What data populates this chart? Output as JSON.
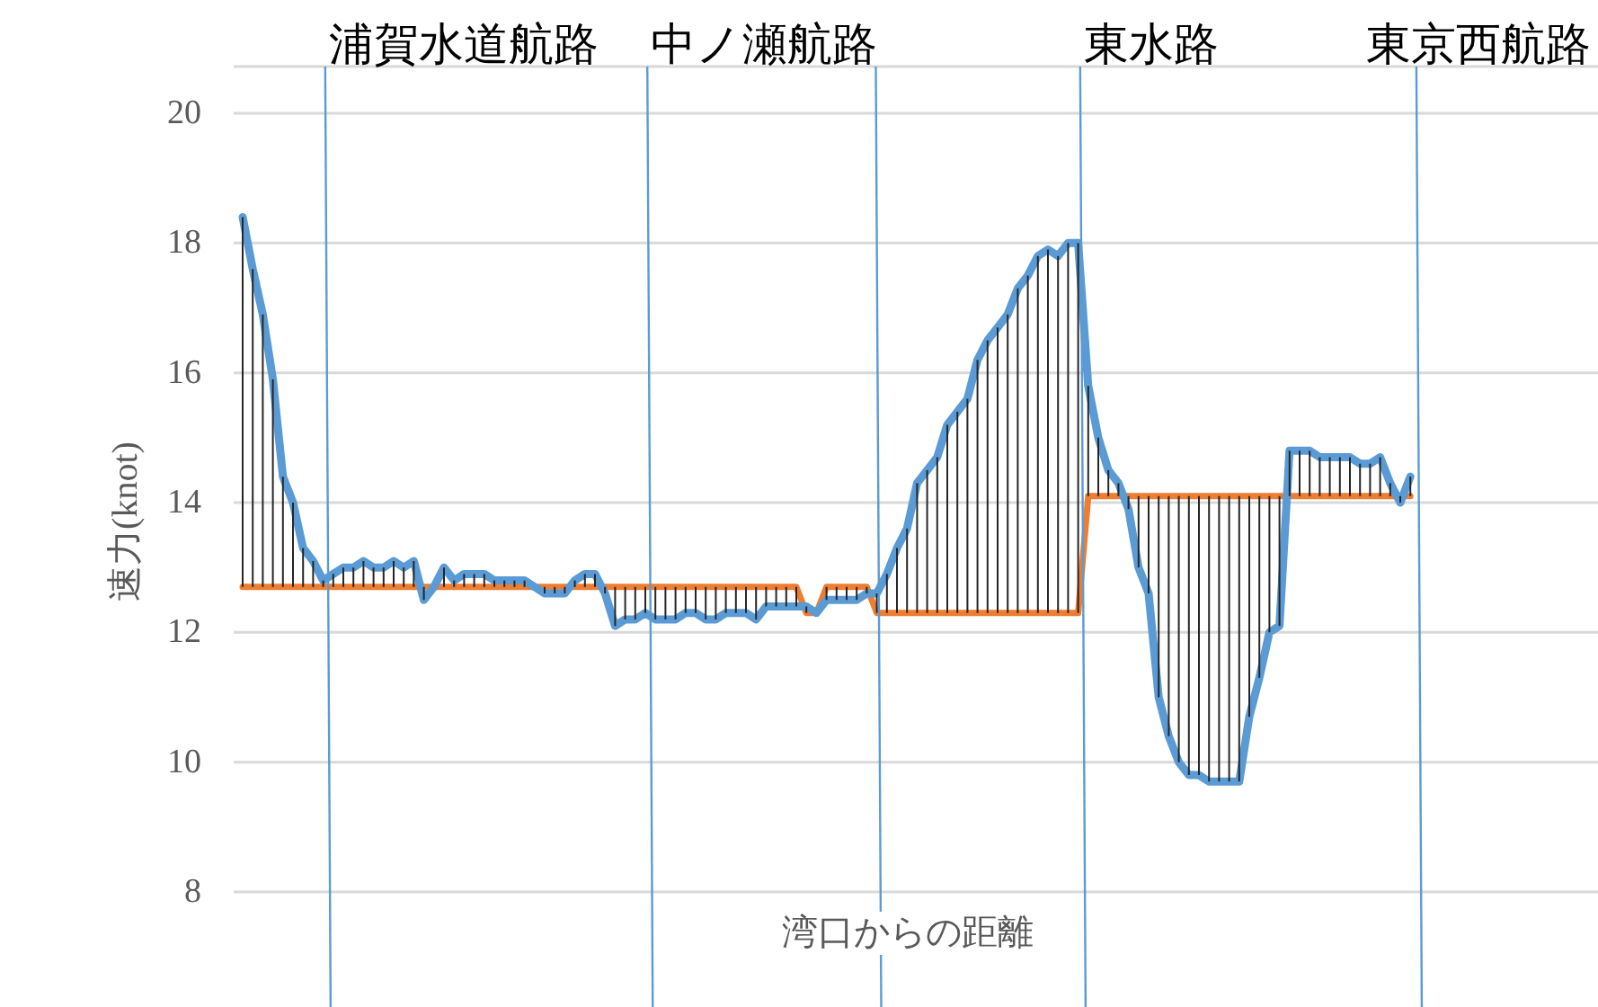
{
  "chart_data": {
    "type": "line",
    "ylabel": "速力(knot)",
    "xlabel": "湾口からの距離",
    "categories": [
      null,
      null,
      null,
      null,
      null,
      null,
      null,
      null,
      null,
      null,
      null,
      null,
      null,
      null,
      null,
      null,
      null,
      null,
      null,
      null,
      null,
      null,
      null,
      null,
      null,
      null,
      null,
      null,
      null,
      null,
      null,
      null,
      null,
      null,
      null,
      null,
      null,
      null,
      null,
      null,
      null,
      null,
      null,
      null,
      null,
      null,
      null,
      null,
      null,
      null,
      null,
      null,
      null,
      null,
      null,
      null,
      null,
      null,
      null,
      null,
      null,
      null,
      null,
      null,
      null,
      null,
      null,
      null,
      null,
      null,
      null,
      null,
      null,
      null,
      null,
      null,
      null,
      null,
      null,
      null,
      null,
      null,
      null,
      null,
      null,
      null,
      null,
      null,
      null,
      null,
      null,
      null,
      null,
      null,
      null,
      null,
      null,
      null,
      null,
      null,
      null,
      null,
      null,
      null,
      null,
      null,
      null,
      null,
      null,
      null,
      null,
      null,
      null,
      null,
      null,
      null,
      null
    ],
    "series": [
      {
        "color": "#5b9bd5",
        "errors": [
          [
            12.7,
            18.4
          ],
          [
            12.7,
            17.6
          ],
          [
            12.7,
            16.9
          ],
          [
            12.7,
            15.9
          ],
          [
            12.7,
            14.4
          ],
          [
            12.7,
            14.0
          ],
          [
            12.7,
            13.3
          ],
          [
            12.7,
            13.1
          ],
          [
            12.7,
            12.8
          ],
          [
            12.7,
            12.9
          ],
          [
            12.7,
            13.0
          ],
          [
            12.7,
            13.0
          ],
          [
            12.7,
            13.1
          ],
          [
            12.7,
            13.0
          ],
          [
            12.7,
            13.0
          ],
          [
            12.7,
            13.1
          ],
          [
            12.7,
            13.0
          ],
          [
            12.7,
            13.1
          ],
          [
            12.5,
            12.7
          ],
          null,
          [
            12.7,
            13.0
          ],
          [
            12.7,
            12.8
          ],
          [
            12.7,
            12.9
          ],
          [
            12.7,
            12.9
          ],
          [
            12.7,
            12.9
          ],
          [
            12.7,
            12.8
          ],
          [
            12.7,
            12.8
          ],
          [
            12.7,
            12.8
          ],
          [
            12.7,
            12.8
          ],
          null,
          [
            12.6,
            12.7
          ],
          [
            12.6,
            12.7
          ],
          [
            12.6,
            12.7
          ],
          [
            12.7,
            12.8
          ],
          [
            12.7,
            12.9
          ],
          [
            12.7,
            12.9
          ],
          [
            12.6,
            12.7
          ],
          [
            12.1,
            12.7
          ],
          [
            12.2,
            12.7
          ],
          [
            12.2,
            12.7
          ],
          [
            12.3,
            12.7
          ],
          [
            12.2,
            12.7
          ],
          [
            12.2,
            12.7
          ],
          [
            12.2,
            12.7
          ],
          [
            12.3,
            12.7
          ],
          [
            12.3,
            12.7
          ],
          [
            12.2,
            12.7
          ],
          [
            12.2,
            12.7
          ],
          [
            12.3,
            12.7
          ],
          [
            12.3,
            12.7
          ],
          [
            12.3,
            12.7
          ],
          [
            12.2,
            12.7
          ],
          [
            12.4,
            12.7
          ],
          [
            12.4,
            12.7
          ],
          [
            12.4,
            12.7
          ],
          [
            12.4,
            12.7
          ],
          [
            12.3,
            12.4
          ],
          null,
          [
            12.5,
            12.7
          ],
          [
            12.5,
            12.7
          ],
          [
            12.5,
            12.7
          ],
          [
            12.5,
            12.7
          ],
          [
            12.6,
            12.7
          ],
          [
            12.3,
            12.6
          ],
          [
            12.3,
            12.9
          ],
          [
            12.3,
            13.3
          ],
          [
            12.3,
            13.6
          ],
          [
            12.3,
            14.3
          ],
          [
            12.3,
            14.5
          ],
          [
            12.3,
            14.7
          ],
          [
            12.3,
            15.2
          ],
          [
            12.3,
            15.4
          ],
          [
            12.3,
            15.6
          ],
          [
            12.3,
            16.2
          ],
          [
            12.3,
            16.5
          ],
          [
            12.3,
            16.7
          ],
          [
            12.3,
            16.9
          ],
          [
            12.3,
            17.3
          ],
          [
            12.3,
            17.5
          ],
          [
            12.3,
            17.8
          ],
          [
            12.3,
            17.9
          ],
          [
            12.3,
            17.8
          ],
          [
            12.3,
            18.0
          ],
          [
            12.3,
            18.0
          ],
          [
            14.1,
            15.8
          ],
          [
            14.1,
            15.0
          ],
          [
            14.1,
            14.5
          ],
          [
            14.1,
            14.3
          ],
          [
            13.9,
            14.1
          ],
          [
            13.0,
            14.1
          ],
          [
            12.6,
            14.1
          ],
          [
            11.0,
            14.1
          ],
          [
            10.4,
            14.1
          ],
          [
            10.0,
            14.1
          ],
          [
            9.8,
            14.1
          ],
          [
            9.8,
            14.1
          ],
          [
            9.7,
            14.1
          ],
          [
            9.7,
            14.1
          ],
          [
            9.7,
            14.1
          ],
          [
            9.7,
            14.1
          ],
          [
            10.7,
            14.1
          ],
          [
            11.3,
            14.1
          ],
          [
            12.0,
            14.1
          ],
          [
            12.1,
            14.1
          ],
          [
            14.1,
            14.8
          ],
          [
            14.1,
            14.8
          ],
          [
            14.1,
            14.8
          ],
          [
            14.1,
            14.7
          ],
          [
            14.1,
            14.7
          ],
          [
            14.1,
            14.7
          ],
          [
            14.1,
            14.7
          ],
          [
            14.1,
            14.6
          ],
          [
            14.1,
            14.6
          ],
          [
            14.1,
            14.7
          ],
          [
            14.1,
            14.3
          ],
          [
            14.0,
            14.1
          ],
          [
            14.1,
            14.4
          ]
        ],
        "values": [
          18.4,
          17.6,
          16.9,
          15.9,
          14.4,
          14.0,
          13.3,
          13.1,
          12.8,
          12.9,
          13.0,
          13.0,
          13.1,
          13.0,
          13.0,
          13.1,
          13.0,
          13.1,
          12.5,
          12.7,
          13.0,
          12.8,
          12.9,
          12.9,
          12.9,
          12.8,
          12.8,
          12.8,
          12.8,
          12.7,
          12.6,
          12.6,
          12.6,
          12.8,
          12.9,
          12.9,
          12.6,
          12.1,
          12.2,
          12.2,
          12.3,
          12.2,
          12.2,
          12.2,
          12.3,
          12.3,
          12.2,
          12.2,
          12.3,
          12.3,
          12.3,
          12.2,
          12.4,
          12.4,
          12.4,
          12.4,
          12.4,
          12.3,
          12.5,
          12.5,
          12.5,
          12.5,
          12.6,
          12.6,
          12.9,
          13.3,
          13.6,
          14.3,
          14.5,
          14.7,
          15.2,
          15.4,
          15.6,
          16.2,
          16.5,
          16.7,
          16.9,
          17.3,
          17.5,
          17.8,
          17.9,
          17.8,
          18.0,
          18.0,
          15.8,
          15.0,
          14.5,
          14.3,
          13.9,
          13.0,
          12.6,
          11.0,
          10.4,
          10.0,
          9.8,
          9.8,
          9.7,
          9.7,
          9.7,
          9.7,
          10.7,
          11.3,
          12.0,
          12.1,
          14.8,
          14.8,
          14.8,
          14.7,
          14.7,
          14.7,
          14.7,
          14.6,
          14.6,
          14.7,
          14.3,
          14.0,
          14.4
        ]
      },
      {
        "color": "#ed7d31",
        "values": [
          12.7,
          12.7,
          12.7,
          12.7,
          12.7,
          12.7,
          12.7,
          12.7,
          12.7,
          12.7,
          12.7,
          12.7,
          12.7,
          12.7,
          12.7,
          12.7,
          12.7,
          12.7,
          12.7,
          12.7,
          12.7,
          12.7,
          12.7,
          12.7,
          12.7,
          12.7,
          12.7,
          12.7,
          12.7,
          12.7,
          12.7,
          12.7,
          12.7,
          12.7,
          12.7,
          12.7,
          12.7,
          12.7,
          12.7,
          12.7,
          12.7,
          12.7,
          12.7,
          12.7,
          12.7,
          12.7,
          12.7,
          12.7,
          12.7,
          12.7,
          12.7,
          12.7,
          12.7,
          12.7,
          12.7,
          12.7,
          12.3,
          12.3,
          12.7,
          12.7,
          12.7,
          12.7,
          12.7,
          12.3,
          12.3,
          12.3,
          12.3,
          12.3,
          12.3,
          12.3,
          12.3,
          12.3,
          12.3,
          12.3,
          12.3,
          12.3,
          12.3,
          12.3,
          12.3,
          12.3,
          12.3,
          12.3,
          12.3,
          12.3,
          14.1,
          14.1,
          14.1,
          14.1,
          14.1,
          14.1,
          14.1,
          14.1,
          14.1,
          14.1,
          14.1,
          14.1,
          14.1,
          14.1,
          14.1,
          14.1,
          14.1,
          14.1,
          14.1,
          14.1,
          14.1,
          14.1,
          14.1,
          14.1,
          14.1,
          14.1,
          14.1,
          14.1,
          14.1,
          14.1,
          14.1,
          14.1,
          14.1
        ]
      }
    ],
    "ylim": [
      8,
      20
    ],
    "yticks": [
      8,
      10,
      12,
      14,
      16,
      18,
      20
    ],
    "grid": "y",
    "tick_labels": "y",
    "annotations": [
      "浦賀水道航路",
      "中ノ瀬航路",
      "東水路",
      "東京西航路"
    ]
  }
}
